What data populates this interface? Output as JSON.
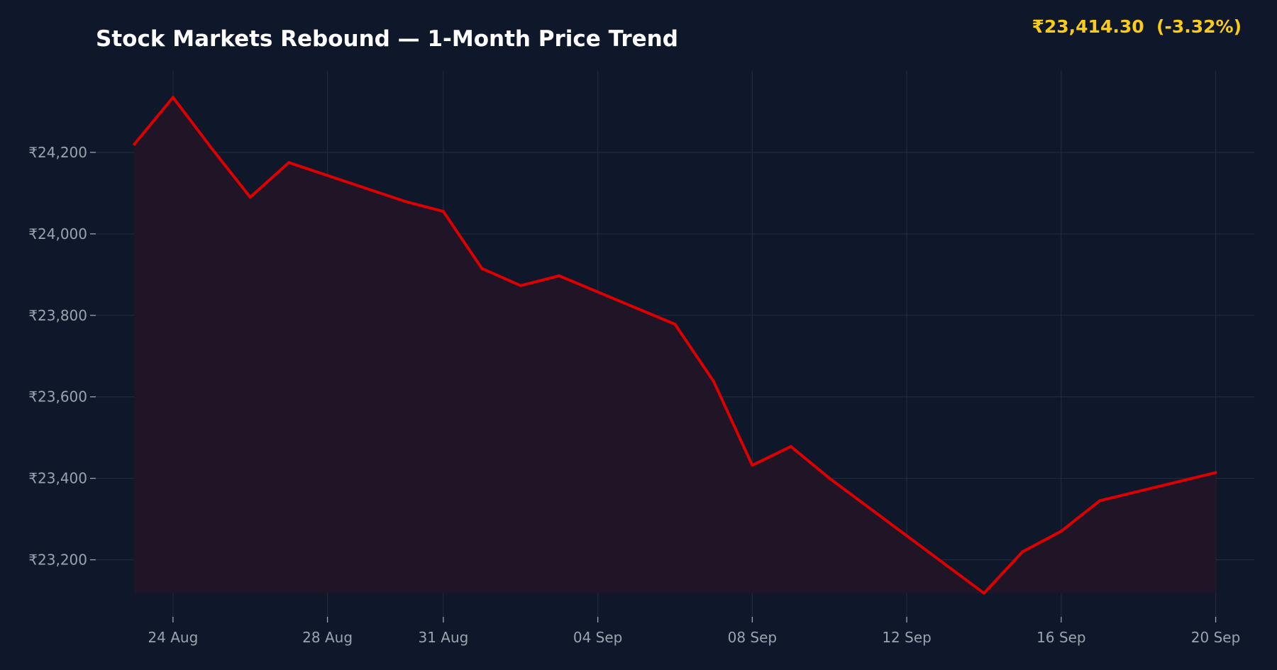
{
  "header": {
    "price_readout": "₹23,414.30  (-3.32%)",
    "price_readout_color": "#facc15"
  },
  "colors": {
    "background": "#0f172a",
    "line": "#dc0000",
    "fill": "#1f1526",
    "grid": "#1e293b",
    "tick_text": "#9ca3af"
  },
  "chart_data": {
    "type": "area",
    "title": "Stock Markets Rebound — 1-Month Price Trend",
    "xlabel": "",
    "ylabel": "",
    "grid": true,
    "x_range": [
      "2024-08-22",
      "2024-09-21"
    ],
    "ylim": [
      23060,
      24400
    ],
    "y_ticks": [
      23200,
      23400,
      23600,
      23800,
      24000,
      24200
    ],
    "y_tick_labels": [
      "₹23,200",
      "₹23,400",
      "₹23,600",
      "₹23,800",
      "₹24,000",
      "₹24,200"
    ],
    "x_ticks": [
      "2024-08-24",
      "2024-08-28",
      "2024-08-31",
      "2024-09-04",
      "2024-09-08",
      "2024-09-12",
      "2024-09-16",
      "2024-09-20"
    ],
    "x_tick_labels": [
      "24 Aug",
      "28 Aug",
      "31 Aug",
      "04 Sep",
      "08 Sep",
      "12 Sep",
      "16 Sep",
      "20 Sep"
    ],
    "x": [
      "2024-08-23",
      "2024-08-24",
      "2024-08-25",
      "2024-08-26",
      "2024-08-27",
      "2024-08-30",
      "2024-08-31",
      "2024-09-01",
      "2024-09-02",
      "2024-09-03",
      "2024-09-06",
      "2024-09-07",
      "2024-09-08",
      "2024-09-09",
      "2024-09-10",
      "2024-09-14",
      "2024-09-15",
      "2024-09-16",
      "2024-09-17",
      "2024-09-20"
    ],
    "values": [
      24220,
      24335,
      24210,
      24090,
      24175,
      24080,
      24055,
      23915,
      23873,
      23897,
      23778,
      23638,
      23432,
      23478,
      23400,
      23118,
      23220,
      23270,
      23345,
      23414
    ]
  }
}
